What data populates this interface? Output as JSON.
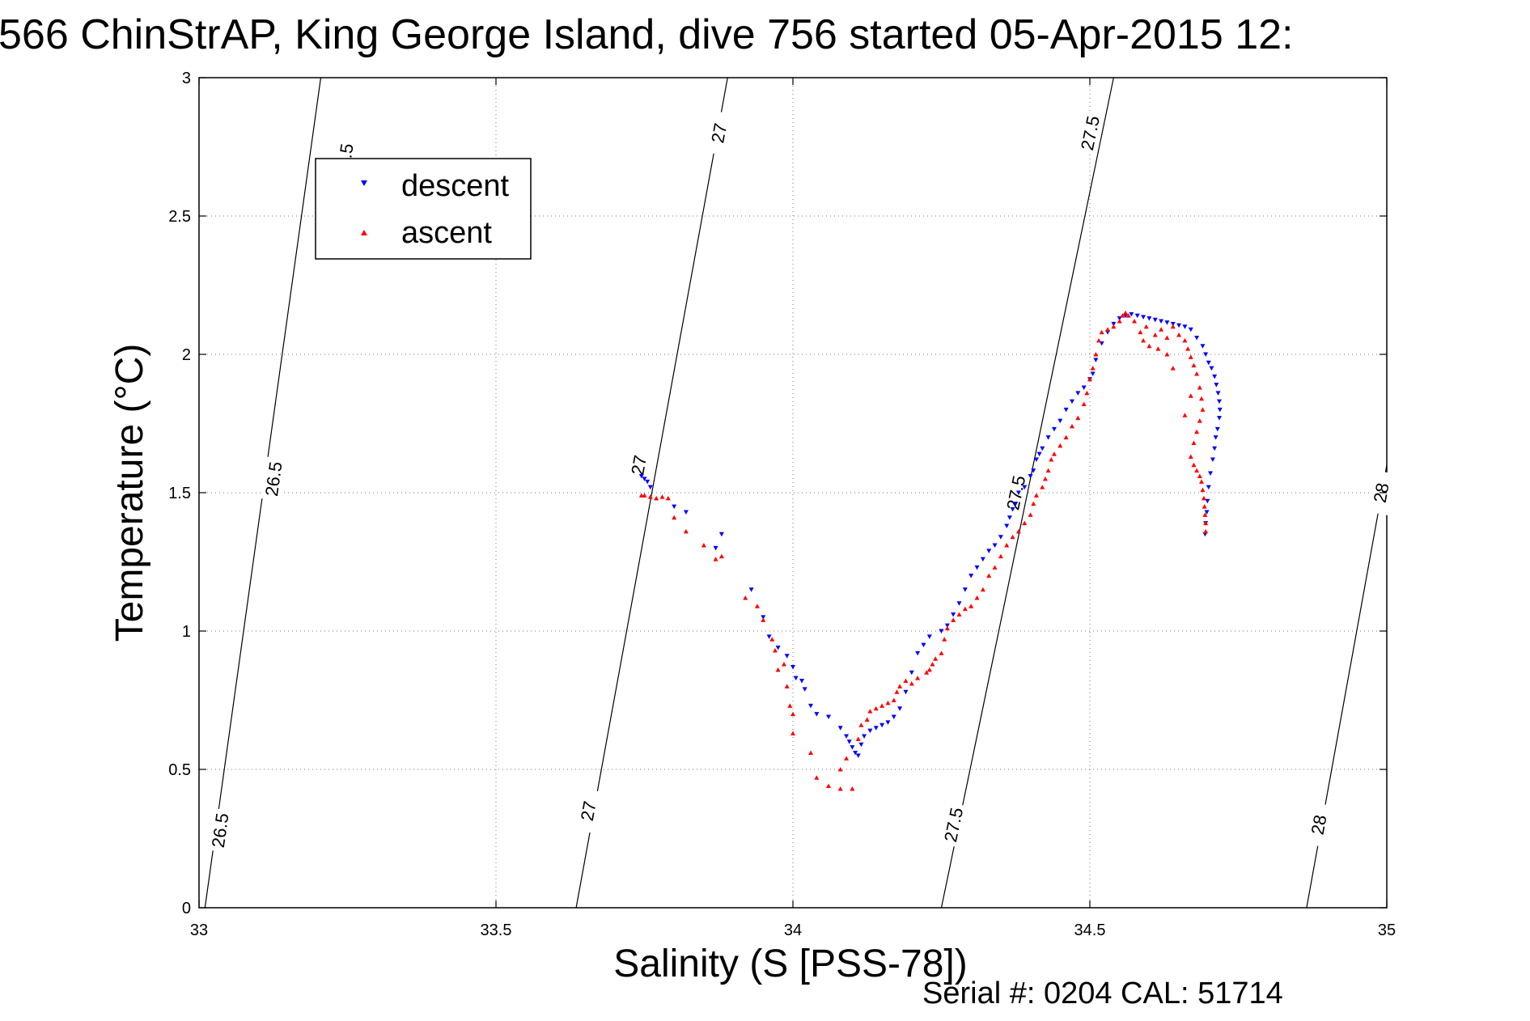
{
  "chart_data": {
    "type": "scatter",
    "title": "566 ChinStrAP, King George Island, dive 756 started 05-Apr-2015 12:",
    "xlabel": "Salinity (S [PSS-78])",
    "ylabel": "Temperature (°C)",
    "xlim": [
      33,
      35
    ],
    "ylim": [
      0,
      3
    ],
    "grid": true,
    "grid_style": "dotted",
    "legend_position": "top-left",
    "x_ticks": [
      33,
      33.5,
      34,
      34.5,
      35
    ],
    "x_tick_labels": [
      "33",
      "33.5",
      "34",
      "34.5",
      "35"
    ],
    "y_ticks": [
      0,
      0.5,
      1,
      1.5,
      2,
      2.5,
      3
    ],
    "y_tick_labels": [
      "0",
      "0.5",
      "1",
      "1.5",
      "2",
      "2.5",
      "3"
    ],
    "density_contours": [
      {
        "label": "26.5",
        "line": [
          [
            33.01,
            0
          ],
          [
            33.205,
            3
          ]
        ],
        "label_points": [
          [
            33.035,
            0.28
          ],
          [
            33.125,
            1.55
          ],
          [
            33.245,
            2.7
          ]
        ]
      },
      {
        "label": "27",
        "line": [
          [
            33.635,
            0
          ],
          [
            33.89,
            3
          ]
        ],
        "label_points": [
          [
            33.655,
            0.35
          ],
          [
            33.74,
            1.6
          ],
          [
            33.875,
            2.8
          ]
        ]
      },
      {
        "label": "27.5",
        "line": [
          [
            34.25,
            0
          ],
          [
            34.54,
            3
          ]
        ],
        "label_points": [
          [
            34.27,
            0.3
          ],
          [
            34.375,
            1.5
          ],
          [
            34.5,
            2.8
          ]
        ]
      },
      {
        "label": "28",
        "line": [
          [
            34.865,
            0
          ],
          [
            35.0,
            1.6
          ]
        ],
        "label_points": [
          [
            34.885,
            0.3
          ],
          [
            34.99,
            1.5
          ]
        ]
      }
    ],
    "series": [
      {
        "name": "descent",
        "color": "#0000ff",
        "marker": "triangle-down",
        "points": [
          [
            33.745,
            1.56
          ],
          [
            33.75,
            1.55
          ],
          [
            33.755,
            1.54
          ],
          [
            33.76,
            1.52
          ],
          [
            33.8,
            1.45
          ],
          [
            33.82,
            1.43
          ],
          [
            33.88,
            1.35
          ],
          [
            33.87,
            1.3
          ],
          [
            33.93,
            1.15
          ],
          [
            33.95,
            1.05
          ],
          [
            33.96,
            0.98
          ],
          [
            33.975,
            0.94
          ],
          [
            33.99,
            0.91
          ],
          [
            34.0,
            0.87
          ],
          [
            34.005,
            0.83
          ],
          [
            34.015,
            0.82
          ],
          [
            34.02,
            0.79
          ],
          [
            34.03,
            0.73
          ],
          [
            34.04,
            0.7
          ],
          [
            34.06,
            0.69
          ],
          [
            34.08,
            0.65
          ],
          [
            34.09,
            0.62
          ],
          [
            34.095,
            0.6
          ],
          [
            34.1,
            0.58
          ],
          [
            34.105,
            0.56
          ],
          [
            34.11,
            0.55
          ],
          [
            34.115,
            0.59
          ],
          [
            34.12,
            0.62
          ],
          [
            34.13,
            0.64
          ],
          [
            34.14,
            0.65
          ],
          [
            34.15,
            0.66
          ],
          [
            34.16,
            0.67
          ],
          [
            34.17,
            0.69
          ],
          [
            34.18,
            0.72
          ],
          [
            34.19,
            0.78
          ],
          [
            34.2,
            0.85
          ],
          [
            34.21,
            0.92
          ],
          [
            34.22,
            0.95
          ],
          [
            34.23,
            0.98
          ],
          [
            34.25,
            1.0
          ],
          [
            34.26,
            1.02
          ],
          [
            34.27,
            1.06
          ],
          [
            34.28,
            1.1
          ],
          [
            34.29,
            1.15
          ],
          [
            34.3,
            1.2
          ],
          [
            34.31,
            1.23
          ],
          [
            34.32,
            1.26
          ],
          [
            34.33,
            1.29
          ],
          [
            34.34,
            1.31
          ],
          [
            34.35,
            1.34
          ],
          [
            34.36,
            1.38
          ],
          [
            34.365,
            1.41
          ],
          [
            34.37,
            1.44
          ],
          [
            34.375,
            1.46
          ],
          [
            34.38,
            1.5
          ],
          [
            34.39,
            1.52
          ],
          [
            34.4,
            1.56
          ],
          [
            34.405,
            1.58
          ],
          [
            34.41,
            1.62
          ],
          [
            34.415,
            1.64
          ],
          [
            34.42,
            1.66
          ],
          [
            34.43,
            1.7
          ],
          [
            34.44,
            1.73
          ],
          [
            34.45,
            1.76
          ],
          [
            34.46,
            1.8
          ],
          [
            34.47,
            1.83
          ],
          [
            34.48,
            1.86
          ],
          [
            34.49,
            1.88
          ],
          [
            34.5,
            1.91
          ],
          [
            34.505,
            1.93
          ],
          [
            34.51,
            1.98
          ],
          [
            34.52,
            2.04
          ],
          [
            34.53,
            2.08
          ],
          [
            34.54,
            2.11
          ],
          [
            34.55,
            2.13
          ],
          [
            34.56,
            2.14
          ],
          [
            34.57,
            2.145
          ],
          [
            34.58,
            2.14
          ],
          [
            34.59,
            2.135
          ],
          [
            34.6,
            2.13
          ],
          [
            34.61,
            2.125
          ],
          [
            34.62,
            2.12
          ],
          [
            34.63,
            2.115
          ],
          [
            34.64,
            2.11
          ],
          [
            34.65,
            2.105
          ],
          [
            34.66,
            2.1
          ],
          [
            34.67,
            2.09
          ],
          [
            34.68,
            2.06
          ],
          [
            34.69,
            2.03
          ],
          [
            34.695,
            2.0
          ],
          [
            34.7,
            1.97
          ],
          [
            34.705,
            1.95
          ],
          [
            34.71,
            1.92
          ],
          [
            34.713,
            1.89
          ],
          [
            34.716,
            1.86
          ],
          [
            34.718,
            1.83
          ],
          [
            34.719,
            1.8
          ],
          [
            34.718,
            1.77
          ],
          [
            34.715,
            1.73
          ],
          [
            34.712,
            1.7
          ],
          [
            34.71,
            1.66
          ],
          [
            34.707,
            1.62
          ],
          [
            34.703,
            1.57
          ],
          [
            34.7,
            1.52
          ],
          [
            34.698,
            1.47
          ],
          [
            34.697,
            1.43
          ],
          [
            34.695,
            1.39
          ],
          [
            34.694,
            1.35
          ]
        ]
      },
      {
        "name": "ascent",
        "color": "#ff0000",
        "marker": "triangle-up",
        "points": [
          [
            33.745,
            1.49
          ],
          [
            33.75,
            1.49
          ],
          [
            33.76,
            1.485
          ],
          [
            33.77,
            1.48
          ],
          [
            33.78,
            1.485
          ],
          [
            33.79,
            1.48
          ],
          [
            33.8,
            1.41
          ],
          [
            33.82,
            1.36
          ],
          [
            33.85,
            1.31
          ],
          [
            33.87,
            1.26
          ],
          [
            33.88,
            1.27
          ],
          [
            33.92,
            1.12
          ],
          [
            33.94,
            1.09
          ],
          [
            33.95,
            1.04
          ],
          [
            33.965,
            0.97
          ],
          [
            33.97,
            0.93
          ],
          [
            33.975,
            0.86
          ],
          [
            33.985,
            0.88
          ],
          [
            33.99,
            0.8
          ],
          [
            33.995,
            0.73
          ],
          [
            34.0,
            0.7
          ],
          [
            34.0,
            0.63
          ],
          [
            34.03,
            0.56
          ],
          [
            34.04,
            0.47
          ],
          [
            34.06,
            0.44
          ],
          [
            34.08,
            0.43
          ],
          [
            34.1,
            0.43
          ],
          [
            34.08,
            0.5
          ],
          [
            34.09,
            0.54
          ],
          [
            34.11,
            0.61
          ],
          [
            34.115,
            0.66
          ],
          [
            34.125,
            0.68
          ],
          [
            34.13,
            0.71
          ],
          [
            34.14,
            0.72
          ],
          [
            34.15,
            0.73
          ],
          [
            34.16,
            0.74
          ],
          [
            34.17,
            0.75
          ],
          [
            34.175,
            0.78
          ],
          [
            34.18,
            0.8
          ],
          [
            34.19,
            0.82
          ],
          [
            34.2,
            0.81
          ],
          [
            34.21,
            0.83
          ],
          [
            34.225,
            0.85
          ],
          [
            34.23,
            0.86
          ],
          [
            34.235,
            0.88
          ],
          [
            34.24,
            0.9
          ],
          [
            34.25,
            0.92
          ],
          [
            34.255,
            0.97
          ],
          [
            34.26,
            1.01
          ],
          [
            34.27,
            1.04
          ],
          [
            34.28,
            1.06
          ],
          [
            34.29,
            1.08
          ],
          [
            34.3,
            1.09
          ],
          [
            34.31,
            1.12
          ],
          [
            34.32,
            1.15
          ],
          [
            34.33,
            1.2
          ],
          [
            34.34,
            1.23
          ],
          [
            34.35,
            1.27
          ],
          [
            34.36,
            1.31
          ],
          [
            34.37,
            1.34
          ],
          [
            34.38,
            1.36
          ],
          [
            34.39,
            1.39
          ],
          [
            34.4,
            1.42
          ],
          [
            34.405,
            1.46
          ],
          [
            34.41,
            1.49
          ],
          [
            34.42,
            1.52
          ],
          [
            34.425,
            1.55
          ],
          [
            34.43,
            1.58
          ],
          [
            34.435,
            1.62
          ],
          [
            34.44,
            1.64
          ],
          [
            34.45,
            1.67
          ],
          [
            34.46,
            1.7
          ],
          [
            34.47,
            1.74
          ],
          [
            34.48,
            1.77
          ],
          [
            34.49,
            1.82
          ],
          [
            34.495,
            1.86
          ],
          [
            34.5,
            1.91
          ],
          [
            34.505,
            1.95
          ],
          [
            34.51,
            2.0
          ],
          [
            34.515,
            2.05
          ],
          [
            34.52,
            2.08
          ],
          [
            34.53,
            2.09
          ],
          [
            34.54,
            2.1
          ],
          [
            34.55,
            2.12
          ],
          [
            34.555,
            2.14
          ],
          [
            34.56,
            2.15
          ],
          [
            34.565,
            2.14
          ],
          [
            34.575,
            2.12
          ],
          [
            34.585,
            2.08
          ],
          [
            34.59,
            2.05
          ],
          [
            34.6,
            2.03
          ],
          [
            34.61,
            2.07
          ],
          [
            34.62,
            2.09
          ],
          [
            34.63,
            2.06
          ],
          [
            34.64,
            2.1
          ],
          [
            34.65,
            2.07
          ],
          [
            34.66,
            2.05
          ],
          [
            34.665,
            2.02
          ],
          [
            34.67,
            1.99
          ],
          [
            34.675,
            1.96
          ],
          [
            34.68,
            1.93
          ],
          [
            34.685,
            1.88
          ],
          [
            34.688,
            1.84
          ],
          [
            34.69,
            1.8
          ],
          [
            34.685,
            1.76
          ],
          [
            34.68,
            1.72
          ],
          [
            34.675,
            1.68
          ],
          [
            34.67,
            1.63
          ],
          [
            34.675,
            1.6
          ],
          [
            34.68,
            1.58
          ],
          [
            34.685,
            1.56
          ],
          [
            34.688,
            1.54
          ],
          [
            34.69,
            1.51
          ],
          [
            34.692,
            1.48
          ],
          [
            34.693,
            1.45
          ],
          [
            34.694,
            1.42
          ],
          [
            34.695,
            1.39
          ],
          [
            34.695,
            1.36
          ],
          [
            34.66,
            1.78
          ],
          [
            34.67,
            1.85
          ],
          [
            34.64,
            1.95
          ],
          [
            34.63,
            2.0
          ],
          [
            34.595,
            2.1
          ],
          [
            34.615,
            2.02
          ]
        ]
      }
    ],
    "footer": "Serial #: 0204  CAL: 51714"
  },
  "icons": {
    "descent_marker": "triangle-down-icon",
    "ascent_marker": "triangle-up-icon"
  }
}
